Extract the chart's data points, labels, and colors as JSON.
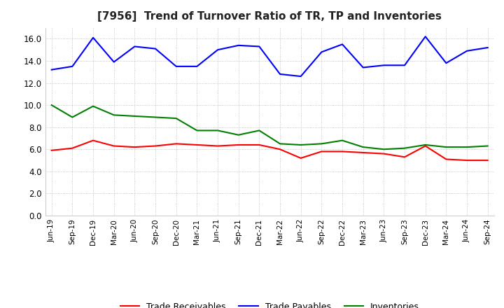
{
  "title": "[7956]  Trend of Turnover Ratio of TR, TP and Inventories",
  "x_labels": [
    "Jun-19",
    "Sep-19",
    "Dec-19",
    "Mar-20",
    "Jun-20",
    "Sep-20",
    "Dec-20",
    "Mar-21",
    "Jun-21",
    "Sep-21",
    "Dec-21",
    "Mar-22",
    "Jun-22",
    "Sep-22",
    "Dec-22",
    "Mar-23",
    "Jun-23",
    "Sep-23",
    "Dec-23",
    "Mar-24",
    "Jun-24",
    "Sep-24"
  ],
  "trade_receivables": [
    5.9,
    6.1,
    6.8,
    6.3,
    6.2,
    6.3,
    6.5,
    6.4,
    6.3,
    6.4,
    6.4,
    6.0,
    5.2,
    5.8,
    5.8,
    5.7,
    5.6,
    5.3,
    6.3,
    5.1,
    5.0,
    5.0
  ],
  "trade_payables": [
    13.2,
    13.5,
    16.1,
    13.9,
    15.3,
    15.1,
    13.5,
    13.5,
    15.0,
    15.4,
    15.3,
    12.8,
    12.6,
    14.8,
    15.5,
    13.4,
    13.6,
    13.6,
    16.2,
    13.8,
    14.9,
    15.2
  ],
  "inventories": [
    10.0,
    8.9,
    9.9,
    9.1,
    9.0,
    8.9,
    8.8,
    7.7,
    7.7,
    7.3,
    7.7,
    6.5,
    6.4,
    6.5,
    6.8,
    6.2,
    6.0,
    6.1,
    6.4,
    6.2,
    6.2,
    6.3
  ],
  "ylim": [
    0.0,
    17.0
  ],
  "yticks": [
    0.0,
    2.0,
    4.0,
    6.0,
    8.0,
    10.0,
    12.0,
    14.0,
    16.0
  ],
  "color_tr": "#ff0000",
  "color_tp": "#0000ff",
  "color_inv": "#008000",
  "legend_labels": [
    "Trade Receivables",
    "Trade Payables",
    "Inventories"
  ],
  "bg_color": "#ffffff",
  "grid_color": "#999999"
}
